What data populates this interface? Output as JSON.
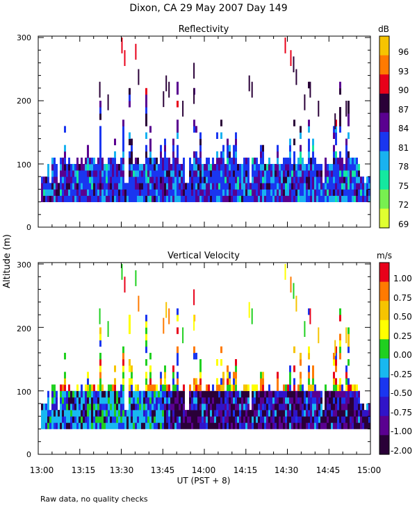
{
  "chart_data": {
    "type": "heatmap",
    "title": "Dixon, CA 29 May 2007  Day 149",
    "ylabel": "Altitude (m)",
    "xlabel": "UT  (PST + 8)",
    "x_ticks": [
      "13:00",
      "13:15",
      "13:30",
      "13:45",
      "14:00",
      "14:15",
      "14:30",
      "14:45",
      "15:00"
    ],
    "xlim_minutes": [
      0,
      120
    ],
    "panels": [
      {
        "name": "reflectivity",
        "title": "Reflectivity",
        "ylim": [
          0,
          300
        ],
        "y_ticks": [
          "0",
          "100",
          "200",
          "300"
        ],
        "colorbar": {
          "unit": "dB",
          "labels": [
            "96",
            "93",
            "90",
            "87",
            "84",
            "81",
            "78",
            "75",
            "72",
            "69"
          ],
          "colors": [
            "#f6c400",
            "#ff7a00",
            "#e8001a",
            "#2a0038",
            "#5a0090",
            "#1a36f0",
            "#19b2f0",
            "#14e8a0",
            "#78f050",
            "#e0ff30"
          ]
        }
      },
      {
        "name": "vertical-velocity",
        "title": "Vertical Velocity",
        "ylim": [
          0,
          300
        ],
        "y_ticks": [
          "0",
          "100",
          "200",
          "300"
        ],
        "colorbar": {
          "unit": "m/s",
          "labels": [
            "1.00",
            "0.75",
            "0.50",
            "0.25",
            "0.00",
            "-0.25",
            "-0.50",
            "-0.75",
            "-1.00",
            "-2.00"
          ],
          "colors": [
            "#e8001a",
            "#ff7a00",
            "#f6c400",
            "#ffff00",
            "#20d020",
            "#18b8f0",
            "#1a36f0",
            "#3014c8",
            "#5a0090",
            "#2a0038"
          ]
        }
      }
    ]
  },
  "footer_note": "Raw data, no quality checks"
}
